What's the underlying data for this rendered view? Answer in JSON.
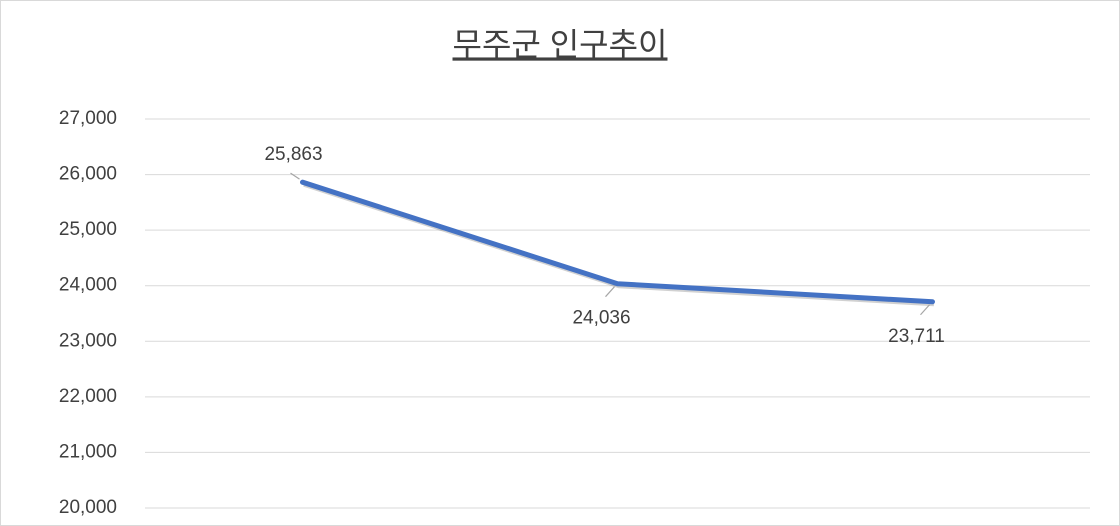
{
  "chart_data": {
    "type": "line",
    "title": "무주군 인구추이",
    "categories": [
      null,
      null,
      null
    ],
    "series": [
      {
        "color": "#4472c4",
        "values": [
          25863,
          24036,
          23711
        ],
        "value_labels": [
          "25,863",
          "24,036",
          "23,711"
        ]
      }
    ],
    "ylim": [
      20000,
      27000
    ],
    "yticks": [
      {
        "value": 20000,
        "label": "20,000"
      },
      {
        "value": 21000,
        "label": "21,000"
      },
      {
        "value": 22000,
        "label": "22,000"
      },
      {
        "value": 23000,
        "label": "23,000"
      },
      {
        "value": 24000,
        "label": "24,000"
      },
      {
        "value": 25000,
        "label": "25,000"
      },
      {
        "value": 26000,
        "label": "26,000"
      },
      {
        "value": 27000,
        "label": "27,000"
      }
    ],
    "grid": true
  }
}
